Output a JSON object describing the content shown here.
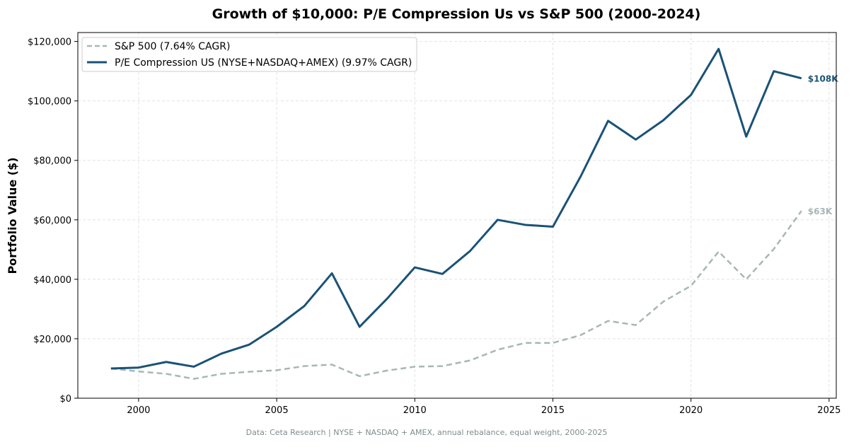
{
  "chart_data": {
    "type": "line",
    "title": "Growth of $10,000: P/E Compression Us vs S&P 500 (2000-2024)",
    "xlabel": "",
    "ylabel": "Portfolio Value ($)",
    "xlim": [
      1997.8,
      2025.26
    ],
    "ylim": [
      0,
      123000
    ],
    "x_ticks": [
      2000,
      2005,
      2010,
      2015,
      2020,
      2025
    ],
    "x_tick_labels": [
      "2000",
      "2005",
      "2010",
      "2015",
      "2020",
      "2025"
    ],
    "y_ticks": [
      0,
      20000,
      40000,
      60000,
      80000,
      100000,
      120000
    ],
    "y_tick_labels": [
      "$0",
      "$20,000",
      "$40,000",
      "$60,000",
      "$80,000",
      "$100,000",
      "$120,000"
    ],
    "grid": true,
    "legend_position": "top-left",
    "x": [
      1999,
      2000,
      2001,
      2002,
      2003,
      2004,
      2005,
      2006,
      2007,
      2008,
      2009,
      2010,
      2011,
      2012,
      2013,
      2014,
      2015,
      2016,
      2017,
      2018,
      2019,
      2020,
      2021,
      2022,
      2023,
      2024
    ],
    "series": [
      {
        "name": "S&P 500 (7.64% CAGR)",
        "color": "#a9b6b6",
        "style": "dashed",
        "end_label": "$63K",
        "values": [
          10000,
          9000,
          8200,
          6500,
          8200,
          8900,
          9400,
          10800,
          11300,
          7400,
          9300,
          10600,
          10800,
          12700,
          16300,
          18600,
          18600,
          21200,
          26000,
          24600,
          32500,
          37800,
          49300,
          40000,
          50200,
          63000
        ]
      },
      {
        "name": "P/E Compression US (NYSE+NASDAQ+AMEX) (9.97% CAGR)",
        "color": "#1a5276",
        "style": "solid",
        "end_label": "$108K",
        "values": [
          10000,
          10300,
          12200,
          10600,
          15000,
          18000,
          24000,
          31000,
          42000,
          24000,
          33500,
          44000,
          41800,
          49500,
          60000,
          58300,
          57700,
          74500,
          93300,
          87000,
          93500,
          102000,
          117500,
          88000,
          110000,
          107600
        ]
      }
    ],
    "footnote": "Data: Ceta Research | NYSE + NASDAQ + AMEX, annual rebalance, equal weight, 2000-2025"
  }
}
